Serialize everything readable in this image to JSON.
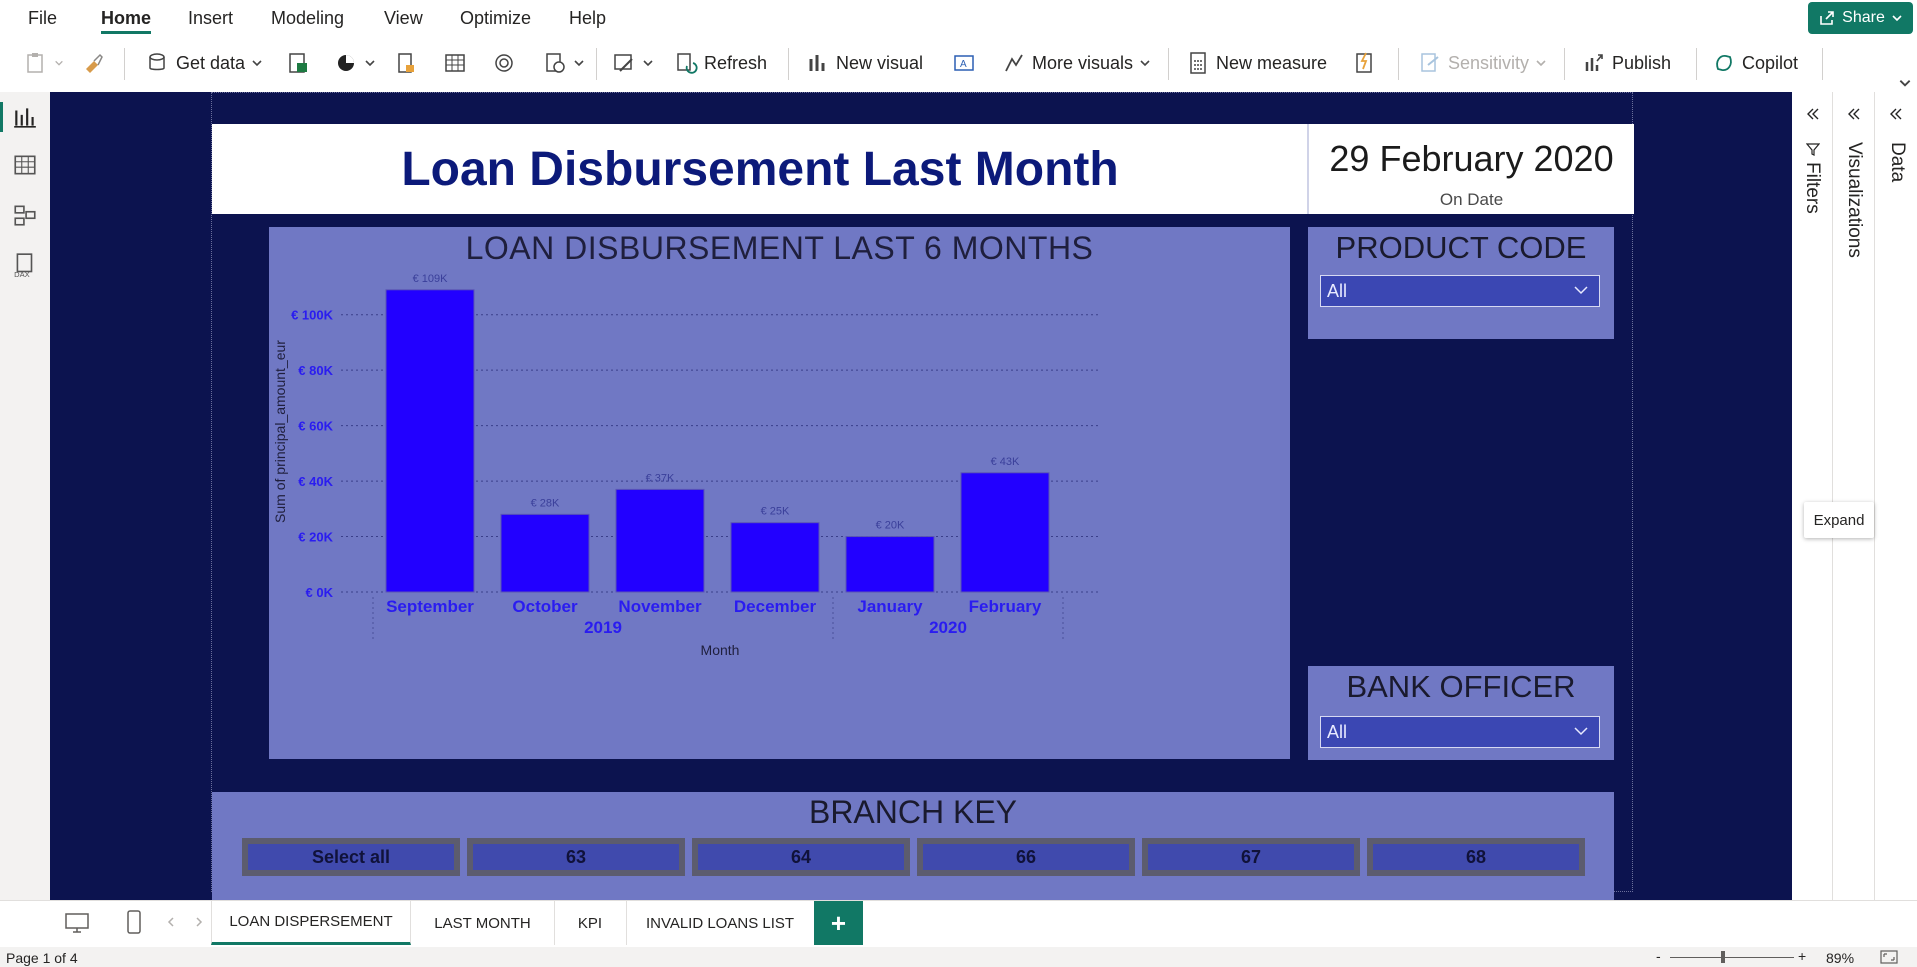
{
  "menu": {
    "items": [
      "File",
      "Home",
      "Insert",
      "Modeling",
      "View",
      "Optimize",
      "Help"
    ],
    "share_label": "Share"
  },
  "ribbon": {
    "get_data": "Get data",
    "refresh": "Refresh",
    "new_visual": "New visual",
    "more_visuals": "More visuals",
    "new_measure": "New measure",
    "sensitivity": "Sensitivity",
    "publish": "Publish",
    "copilot": "Copilot"
  },
  "report": {
    "title": "Loan Disbursement Last Month",
    "date_value": "29 February 2020",
    "date_label": "On Date",
    "product_code": {
      "title": "PRODUCT CODE",
      "selected": "All"
    },
    "bank_officer": {
      "title": "BANK OFFICER",
      "selected": "All"
    },
    "branch_key": {
      "title": "BRANCH KEY",
      "tiles": [
        "Select all",
        "63",
        "64",
        "66",
        "67",
        "68"
      ]
    }
  },
  "chart_data": {
    "type": "bar",
    "title": "LOAN DISBURSEMENT LAST 6 MONTHS",
    "categories": [
      "September",
      "October",
      "November",
      "December",
      "January",
      "February"
    ],
    "year_groups": [
      {
        "label": "2019",
        "categories": [
          "September",
          "October",
          "November",
          "December"
        ]
      },
      {
        "label": "2020",
        "categories": [
          "January",
          "February"
        ]
      }
    ],
    "values": [
      109000,
      28000,
      37000,
      25000,
      20000,
      43000
    ],
    "data_labels": [
      "€ 109K",
      "€ 28K",
      "€ 37K",
      "€ 25K",
      "€ 20K",
      "€ 43K"
    ],
    "xlabel": "Month",
    "ylabel": "Sum of principal_amount_eur",
    "yticks": [
      "€ 0K",
      "€ 20K",
      "€ 40K",
      "€ 60K",
      "€ 80K",
      "€ 100K"
    ],
    "ylim": [
      0,
      110000
    ],
    "grid": true,
    "bar_color": "#2200ff",
    "background_color": "#7078c4"
  },
  "panes": {
    "filters": "Filters",
    "visualizations": "Visualizations",
    "data": "Data",
    "tooltip": "Expand"
  },
  "tabs": {
    "pages": [
      "LOAN DISPERSEMENT",
      "LAST MONTH",
      "KPI",
      "INVALID LOANS LIST"
    ],
    "add": "+"
  },
  "status": {
    "page": "Page 1 of 4",
    "zoom": "89%"
  },
  "colors": {
    "accent": "#117865",
    "canvas": "#0c134f",
    "title_text": "#0c1a7a"
  }
}
